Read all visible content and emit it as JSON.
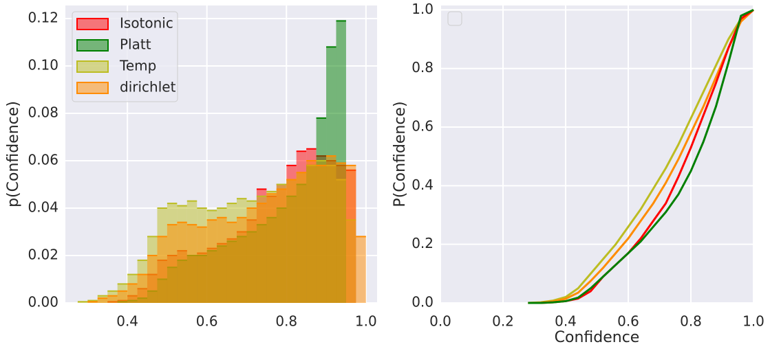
{
  "chart_data": [
    {
      "type": "histogram",
      "ylabel": "p(Confidence)",
      "bins": [
        0.275,
        0.3,
        0.325,
        0.35,
        0.375,
        0.4,
        0.425,
        0.45,
        0.475,
        0.5,
        0.525,
        0.55,
        0.575,
        0.6,
        0.625,
        0.65,
        0.675,
        0.7,
        0.725,
        0.75,
        0.775,
        0.8,
        0.825,
        0.85,
        0.875,
        0.9,
        0.925,
        0.95,
        0.975,
        1.0
      ],
      "series": [
        {
          "name": "Isotonic",
          "color": "#ff0000",
          "values": [
            0,
            0,
            0,
            0.0005,
            0.001,
            0.003,
            0.006,
            0.012,
            0.018,
            0.02,
            0.022,
            0.02,
            0.021,
            0.023,
            0.025,
            0.027,
            0.03,
            0.035,
            0.048,
            0.045,
            0.05,
            0.058,
            0.064,
            0.065,
            0.062,
            0.06,
            0.058,
            0.056,
            0
          ]
        },
        {
          "name": "Platt",
          "color": "#008000",
          "values": [
            0,
            0,
            0,
            0,
            0.0005,
            0.001,
            0.002,
            0.005,
            0.01,
            0.015,
            0.018,
            0.02,
            0.02,
            0.022,
            0.024,
            0.026,
            0.028,
            0.03,
            0.033,
            0.036,
            0.04,
            0.045,
            0.05,
            0.058,
            0.078,
            0.108,
            0.119,
            0,
            0
          ]
        },
        {
          "name": "Temp",
          "color": "#bcbd22",
          "values": [
            0.0005,
            0.001,
            0.003,
            0.005,
            0.008,
            0.012,
            0.018,
            0.028,
            0.04,
            0.042,
            0.041,
            0.043,
            0.04,
            0.039,
            0.04,
            0.042,
            0.044,
            0.043,
            0.045,
            0.047,
            0.05,
            0.052,
            0.055,
            0.058,
            0.06,
            0.058,
            0.052,
            0.035,
            0
          ]
        },
        {
          "name": "dirichlet",
          "color": "#ff8c00",
          "values": [
            0,
            0.0005,
            0.002,
            0.003,
            0.005,
            0.008,
            0.012,
            0.02,
            0.028,
            0.033,
            0.034,
            0.033,
            0.032,
            0.035,
            0.036,
            0.034,
            0.036,
            0.04,
            0.042,
            0.046,
            0.048,
            0.052,
            0.055,
            0.06,
            0.058,
            0.062,
            0.059,
            0.058,
            0.028
          ]
        }
      ],
      "xlim": [
        0.244,
        1.028
      ],
      "xticks": [
        0.4,
        0.6,
        0.8,
        {
          "value": 1,
          "label": "1.0"
        }
      ],
      "ylim": [
        0,
        0.1255
      ],
      "yticks": [
        {
          "value": 0,
          "label": "0.00"
        },
        0.02,
        0.04,
        0.06,
        0.08,
        {
          "value": 0.1,
          "label": "0.10"
        },
        0.12
      ],
      "grid": true,
      "legend": "upper-left"
    },
    {
      "type": "line",
      "xlabel": "Confidence",
      "ylabel": "P(Confidence)",
      "x": [
        0.28,
        0.32,
        0.36,
        0.4,
        0.44,
        0.48,
        0.52,
        0.56,
        0.6,
        0.64,
        0.68,
        0.72,
        0.76,
        0.8,
        0.84,
        0.88,
        0.92,
        0.96,
        1.0
      ],
      "series": [
        {
          "color": "#bcbd22",
          "values": [
            0,
            0.002,
            0.008,
            0.02,
            0.05,
            0.1,
            0.15,
            0.2,
            0.26,
            0.32,
            0.39,
            0.46,
            0.54,
            0.63,
            0.72,
            0.81,
            0.9,
            0.97,
            1.0
          ]
        },
        {
          "color": "#ff8c00",
          "values": [
            0,
            0.001,
            0.005,
            0.014,
            0.035,
            0.075,
            0.12,
            0.17,
            0.22,
            0.28,
            0.34,
            0.41,
            0.49,
            0.58,
            0.67,
            0.77,
            0.87,
            0.96,
            1.0
          ]
        },
        {
          "color": "#ff0000",
          "values": [
            0,
            0,
            0.002,
            0.006,
            0.015,
            0.04,
            0.09,
            0.13,
            0.17,
            0.22,
            0.28,
            0.34,
            0.43,
            0.53,
            0.64,
            0.75,
            0.87,
            0.97,
            1.0
          ]
        },
        {
          "color": "#008000",
          "values": [
            0,
            0,
            0.002,
            0.006,
            0.018,
            0.05,
            0.09,
            0.13,
            0.17,
            0.21,
            0.26,
            0.31,
            0.37,
            0.45,
            0.55,
            0.67,
            0.82,
            0.98,
            1.0
          ]
        }
      ],
      "xlim": [
        0,
        1
      ],
      "xticks": [
        {
          "value": 0,
          "label": "0.0"
        },
        0.2,
        0.4,
        0.6,
        0.8,
        {
          "value": 1,
          "label": "1.0"
        }
      ],
      "ylim": [
        0,
        1.015
      ],
      "yticks": [
        {
          "value": 0,
          "label": "0.0"
        },
        0.2,
        0.4,
        0.6,
        0.8,
        {
          "value": 1,
          "label": "1.0"
        }
      ],
      "grid": true
    }
  ]
}
